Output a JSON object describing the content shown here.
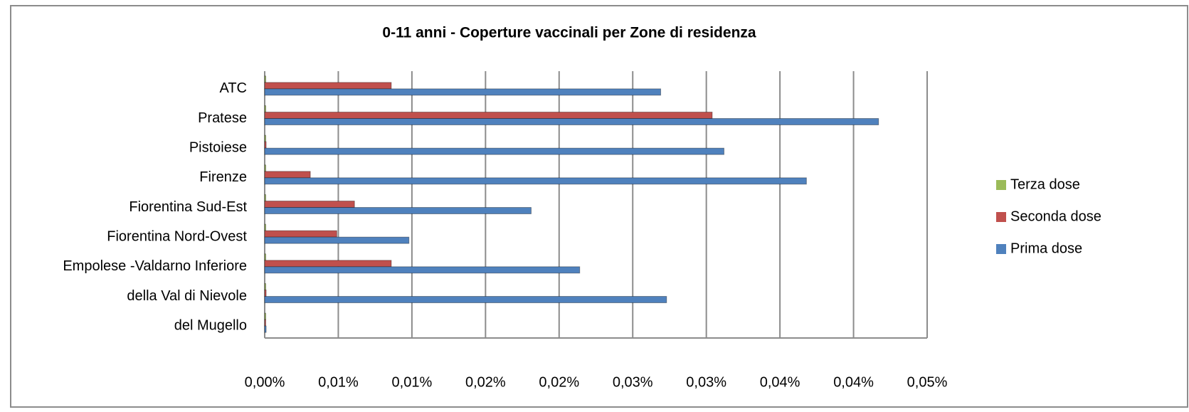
{
  "chart_data": {
    "type": "bar",
    "orientation": "horizontal",
    "title": "0-11 anni - Coperture vaccinali per Zone di residenza",
    "categories": [
      "ATC",
      "Pratese",
      "Pistoiese",
      "Firenze",
      "Fiorentina Sud-Est",
      "Fiorentina Nord-Ovest",
      "Empolese -Valdarno Inferiore",
      "della Val di Nievole",
      "del Mugello"
    ],
    "series": [
      {
        "name": "Terza dose",
        "color": "#9bbb59",
        "values": [
          0,
          0,
          0,
          0,
          0,
          0,
          0,
          0,
          0
        ]
      },
      {
        "name": "Seconda dose",
        "color": "#c0504d",
        "values": [
          0.0086,
          0.0304,
          0.0001,
          0.0031,
          0.0061,
          0.0049,
          0.0086,
          0.0001,
          0
        ]
      },
      {
        "name": "Prima dose",
        "color": "#4f81bd",
        "values": [
          0.0269,
          0.0417,
          0.0312,
          0.0368,
          0.0181,
          0.0098,
          0.0214,
          0.0273,
          0.0001
        ]
      }
    ],
    "xlim": [
      0,
      0.045
    ],
    "xticks": [
      {
        "value": 0,
        "label": "0,00%"
      },
      {
        "value": 0.005,
        "label": "0,01%"
      },
      {
        "value": 0.01,
        "label": "0,01%"
      },
      {
        "value": 0.015,
        "label": "0,02%"
      },
      {
        "value": 0.02,
        "label": "0,02%"
      },
      {
        "value": 0.025,
        "label": "0,03%"
      },
      {
        "value": 0.03,
        "label": "0,03%"
      },
      {
        "value": 0.035,
        "label": "0,04%"
      },
      {
        "value": 0.04,
        "label": "0,04%"
      },
      {
        "value": 0.045,
        "label": "0,05%"
      }
    ],
    "grid": true,
    "legend": "right"
  }
}
